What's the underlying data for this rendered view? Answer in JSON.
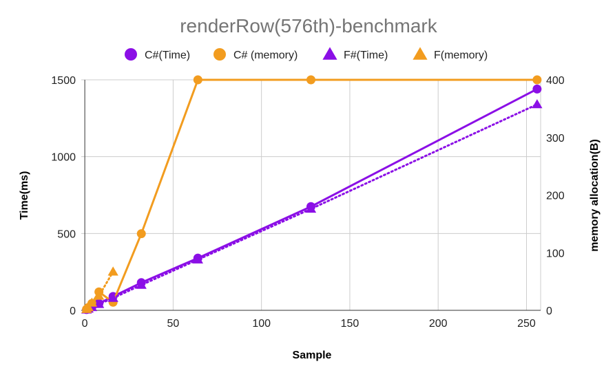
{
  "chart_data": {
    "type": "line",
    "title": "renderRow(576th)-benchmark",
    "xlabel": "Sample",
    "ylabel": "Time(ms)",
    "y2label": "memory allocation(B)",
    "xlim": [
      -2,
      258
    ],
    "ylim": [
      0,
      1500
    ],
    "y2lim": [
      0,
      400
    ],
    "x_ticks": [
      0,
      50,
      100,
      150,
      200,
      250
    ],
    "y_ticks": [
      0,
      500,
      1000,
      1500
    ],
    "y2_ticks": [
      0,
      100,
      200,
      300,
      400
    ],
    "grid": true,
    "legend_position": "top",
    "series": [
      {
        "name": "C#(Time)",
        "axis": "left",
        "color": "#8b0fe6",
        "marker": "circle",
        "line_style": "solid",
        "x": [
          1,
          2,
          4,
          8,
          16,
          32,
          64,
          128,
          256
        ],
        "y": [
          5,
          12,
          22,
          45,
          90,
          180,
          340,
          675,
          1440
        ]
      },
      {
        "name": "C# (memory)",
        "axis": "right",
        "color": "#f29c1f",
        "marker": "circle",
        "line_style": "solid",
        "x": [
          1,
          2,
          4,
          8,
          16,
          32,
          64,
          128,
          256
        ],
        "y": [
          2,
          5,
          12,
          32,
          14,
          133,
          400,
          400,
          400
        ]
      },
      {
        "name": "F#(Time)",
        "axis": "left",
        "color": "#8b0fe6",
        "marker": "triangle",
        "line_style": "dotted",
        "x": [
          1,
          2,
          4,
          8,
          16,
          32,
          64,
          128,
          256
        ],
        "y": [
          4,
          10,
          20,
          40,
          80,
          165,
          330,
          660,
          1340
        ]
      },
      {
        "name": "F(memory)",
        "axis": "right",
        "color": "#f29c1f",
        "marker": "triangle",
        "line_style": "dotted",
        "x": [
          1,
          2,
          4,
          8,
          16
        ],
        "y": [
          2,
          5,
          13,
          25,
          67
        ]
      }
    ]
  }
}
